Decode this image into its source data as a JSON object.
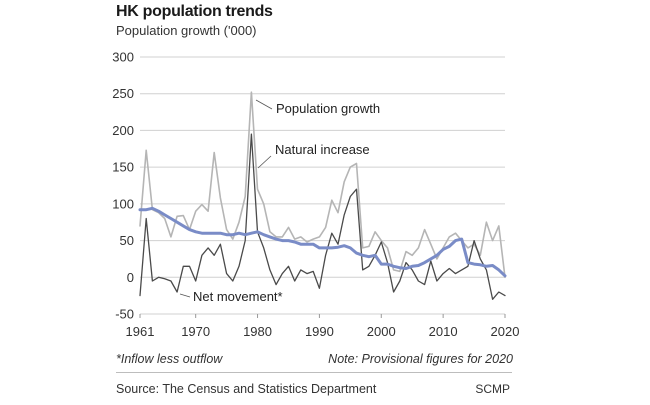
{
  "header": {
    "title": "HK population trends",
    "subtitle": "Population growth ('000)"
  },
  "footnotes": {
    "left": "*Inflow less outflow",
    "right": "Note: Provisional figures for 2020"
  },
  "source": {
    "text": "Source: The Census and Statistics Department",
    "brand": "SCMP"
  },
  "colors": {
    "population_growth": "#b5b5b5",
    "natural_increase": "#7a8cc7",
    "net_movement": "#4a4a4a",
    "grid": "#d0d0d0",
    "text": "#333333"
  },
  "chart_data": {
    "type": "line",
    "title": "HK population trends",
    "ylabel": "Population growth ('000)",
    "xlabel": "",
    "ylim": [
      -50,
      300
    ],
    "xlim": [
      1961,
      2020
    ],
    "y_ticks": [
      -50,
      0,
      50,
      100,
      150,
      200,
      250,
      300
    ],
    "x_ticks": [
      1961,
      1970,
      1980,
      1990,
      2000,
      2010,
      2020
    ],
    "grid": "horizontal",
    "legend": "inline labels",
    "x": [
      1961,
      1962,
      1963,
      1964,
      1965,
      1966,
      1967,
      1968,
      1969,
      1970,
      1971,
      1972,
      1973,
      1974,
      1975,
      1976,
      1977,
      1978,
      1979,
      1980,
      1981,
      1982,
      1983,
      1984,
      1985,
      1986,
      1987,
      1988,
      1989,
      1990,
      1991,
      1992,
      1993,
      1994,
      1995,
      1996,
      1997,
      1998,
      1999,
      2000,
      2001,
      2002,
      2003,
      2004,
      2005,
      2006,
      2007,
      2008,
      2009,
      2010,
      2011,
      2012,
      2013,
      2014,
      2015,
      2016,
      2017,
      2018,
      2019,
      2020
    ],
    "series": [
      {
        "name": "Population growth",
        "values": [
          70,
          173,
          92,
          88,
          80,
          55,
          83,
          84,
          65,
          90,
          99,
          90,
          170,
          108,
          65,
          52,
          75,
          110,
          252,
          120,
          100,
          62,
          55,
          55,
          68,
          52,
          55,
          48,
          52,
          55,
          68,
          105,
          88,
          130,
          150,
          155,
          40,
          42,
          62,
          50,
          40,
          10,
          8,
          35,
          30,
          40,
          65,
          45,
          25,
          40,
          55,
          60,
          50,
          40,
          45,
          30,
          75,
          50,
          70,
          0
        ]
      },
      {
        "name": "Natural increase",
        "values": [
          92,
          92,
          94,
          90,
          85,
          80,
          75,
          70,
          65,
          62,
          60,
          60,
          60,
          60,
          58,
          58,
          60,
          58,
          60,
          62,
          58,
          55,
          52,
          50,
          50,
          48,
          45,
          45,
          45,
          40,
          40,
          40,
          41,
          43,
          40,
          33,
          30,
          28,
          30,
          18,
          18,
          15,
          13,
          12,
          15,
          16,
          20,
          25,
          30,
          38,
          42,
          50,
          52,
          20,
          18,
          17,
          15,
          16,
          10,
          2
        ]
      },
      {
        "name": "Net movement*",
        "values": [
          -25,
          80,
          -5,
          0,
          -2,
          -5,
          -20,
          15,
          15,
          -5,
          30,
          40,
          30,
          45,
          5,
          -5,
          15,
          50,
          195,
          62,
          40,
          10,
          -10,
          5,
          15,
          -5,
          10,
          5,
          8,
          -15,
          30,
          60,
          45,
          85,
          110,
          120,
          10,
          15,
          30,
          48,
          20,
          -20,
          -5,
          20,
          10,
          -5,
          -10,
          22,
          -5,
          5,
          12,
          5,
          10,
          15,
          50,
          25,
          10,
          -30,
          -20,
          -25
        ]
      }
    ],
    "annotations": [
      "Population growth",
      "Natural increase",
      "Net movement*"
    ]
  }
}
